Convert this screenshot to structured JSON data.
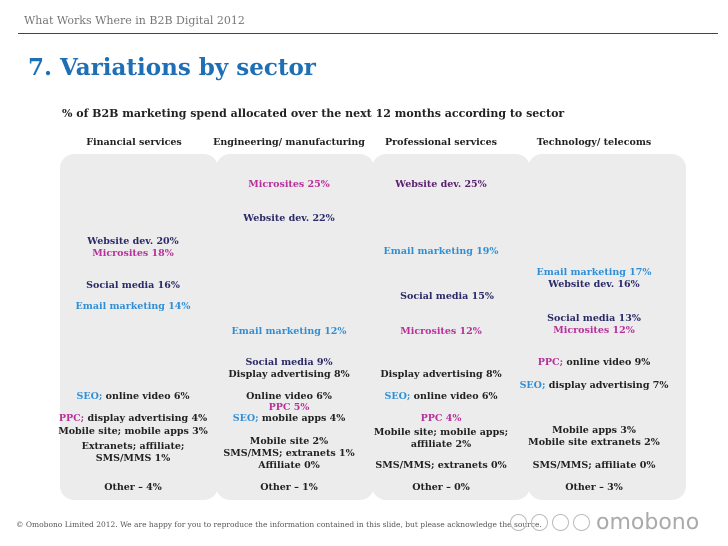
{
  "header": "What Works Where in B2B Digital 2012",
  "title": "7. Variations by sector",
  "subtitle": "% of B2B marketing spend allocated over the next 12 months according to sector",
  "columns": [
    {
      "heading": "Financial services",
      "web": "Website dev. 20%",
      "micro": "Microsites 18%",
      "social": "Social media 16%",
      "email": "Email marketing 14%",
      "seo_k": "SEO;",
      "seo_v": " online video 6%",
      "ppc_k": "PPC;",
      "ppc_v": " display advertising 4%",
      "mobile": "Mobile site; mobile apps 3%",
      "extr1": "Extranets; affiliate;",
      "extr2": "SMS/MMS 1%",
      "other": "Other – 4%"
    },
    {
      "heading": "Engineering/ manufacturing",
      "micro": "Microsites 25%",
      "web": "Website dev. 22%",
      "email": "Email marketing 12%",
      "social": "Social media 9%",
      "display": "Display advertising 8%",
      "video": "Online video 6%",
      "ppc": "PPC 5%",
      "seo_k": "SEO;",
      "seo_v": " mobile apps 4%",
      "mobile": "Mobile site 2%",
      "sms": "SMS/MMS; extranets 1%",
      "aff": "Affiliate 0%",
      "other": "Other – 1%"
    },
    {
      "heading": "Professional services",
      "web": "Website dev. 25%",
      "email": "Email marketing 19%",
      "social": "Social media 15%",
      "micro": "Microsites 12%",
      "display": "Display advertising 8%",
      "seo_k": "SEO;",
      "seo_v": " online video 6%",
      "ppc": "PPC 4%",
      "mob1": "Mobile site; mobile apps;",
      "mob2": "affiliate 2%",
      "sms": "SMS/MMS; extranets 0%",
      "other": "Other – 0%"
    },
    {
      "heading": "Technology/ telecoms",
      "email": "Email marketing 17%",
      "web": "Website dev. 16%",
      "social": "Social media 13%",
      "micro": "Microsites 12%",
      "ppc_k": "PPC;",
      "ppc_v": " online video 9%",
      "seo_k": "SEO;",
      "seo_v": " display advertising 7%",
      "mob1": "Mobile apps 3%",
      "mob2": "Mobile site extranets 2%",
      "sms": "SMS/MMS; affiliate 0%",
      "other": "Other – 3%"
    }
  ],
  "footer": "© Omobono Limited 2012.  We are happy for you to reproduce the information contained in this slide, but please acknowledge the source.",
  "logo": "omobono"
}
